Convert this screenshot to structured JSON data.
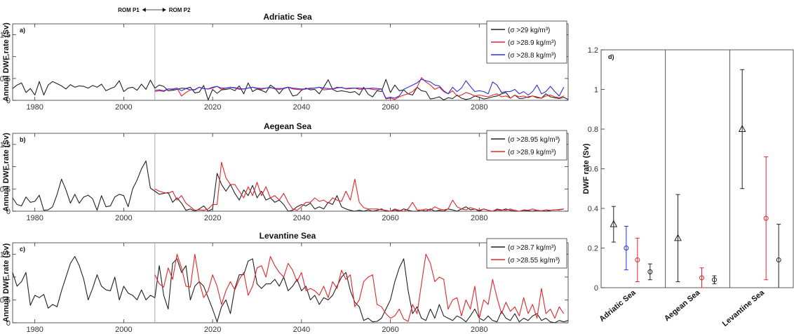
{
  "rom_labels": {
    "left": "ROM P1",
    "right": "ROM P2"
  },
  "ts_ylabel": "Annual DWF rate (Sv)",
  "ts_xticks": [
    1980,
    2000,
    2020,
    2040,
    2060,
    2080
  ],
  "ts_yticks": [
    "0",
    "0.5",
    "1",
    "1.5"
  ],
  "d_panel": {
    "letter": "d)",
    "ylabel": "DWF rate (Sv)",
    "yticks": [
      "0",
      "0.2",
      "0.4",
      "0.6",
      "0.8",
      "1",
      "1.2"
    ],
    "groups": [
      "Adriatic Sea",
      "Aegean Sea",
      "Levantine Sea"
    ]
  },
  "colors": {
    "black": "#222222",
    "red": "#e8252a",
    "blue": "#2e2ee6"
  },
  "chart_data": [
    {
      "type": "line",
      "letter": "a)",
      "title": "Adriatic Sea",
      "xlim": [
        1975,
        2100
      ],
      "ylim": [
        0,
        1.75
      ],
      "switch_year": 2007,
      "legend": [
        "(σ >29 kg/m³)",
        "(σ >28.9 kg/m³)",
        "(σ >28.8 kg/m³)"
      ],
      "series": [
        {
          "color": "black",
          "x0": 1975,
          "values": [
            0.27,
            0.35,
            0.4,
            0.18,
            0.27,
            0.12,
            0.43,
            0.12,
            0.35,
            0.43,
            0.38,
            0.33,
            0.26,
            0.36,
            0.3,
            0.33,
            0.32,
            0.28,
            0.34,
            0.3,
            0.37,
            0.22,
            0.27,
            0.31,
            0.45,
            0.2,
            0.28,
            0.3,
            0.23,
            0.37,
            0.25,
            0.46,
            0.28,
            0.35,
            0.32,
            0.22,
            0.23,
            0.25,
            0.28,
            0.27,
            0.3,
            0.17,
            0.19,
            0.34,
            0.01,
            0.25,
            0.16,
            0.24,
            0.25,
            0.27,
            0.22,
            0.33,
            0.15,
            0.4,
            0.2,
            0.26,
            0.23,
            0.18,
            0.35,
            0.28,
            0.15,
            0.28,
            0.3,
            0.1,
            0.12,
            0.23,
            0.28,
            0.24,
            0.25,
            0.15,
            0.3,
            0.47,
            0.25,
            0.2,
            0.22,
            0.2,
            0.18,
            0.2,
            0.12,
            0.3,
            0.14,
            0.08,
            0.22,
            0.2,
            0.48,
            0.18,
            0.35,
            0.22,
            0.24,
            0.15,
            0.12,
            0.3,
            0.22,
            0.2,
            0.03,
            0.05,
            0.08,
            0.01,
            0.06,
            0.04,
            0.12,
            0.05,
            0.02,
            0.04,
            0.1,
            0.07,
            0.03,
            0.05,
            0.08,
            0.1,
            0.15,
            0.18,
            0.05,
            0.12,
            0.04,
            0.05,
            0.08,
            0.1,
            0.06,
            0.05,
            0.15,
            0.08,
            0.06,
            0.04,
            0.07,
            0.02
          ]
        },
        {
          "color": "red",
          "x0": 2007,
          "values": [
            0.2,
            0.22,
            0.2,
            0.26,
            0.26,
            0.28,
            0.1,
            0.18,
            0.24,
            0.25,
            0.3,
            0.27,
            0.26,
            0.28,
            0.32,
            0.25,
            0.28,
            0.3,
            0.28,
            0.25,
            0.26,
            0.28,
            0.3,
            0.27,
            0.25,
            0.28,
            0.3,
            0.26,
            0.25,
            0.27,
            0.3,
            0.26,
            0.25,
            0.24,
            0.26,
            0.27,
            0.28,
            0.3,
            0.24,
            0.25,
            0.26,
            0.28,
            0.3,
            0.26,
            0.27,
            0.28,
            0.25,
            0.26,
            0.27,
            0.25,
            0.24,
            0.26,
            0.03,
            0.05,
            0.02,
            0.08,
            0.12,
            0.15,
            0.2,
            0.3,
            0.52,
            0.42,
            0.35,
            0.25,
            0.3,
            0.2,
            0.15,
            0.22,
            0.1,
            0.12,
            0.18,
            0.15,
            0.1,
            0.12,
            0.1,
            0.08,
            0.12,
            0.15,
            0.08,
            0.1,
            0.05,
            0.12,
            0.08,
            0.1,
            0.06,
            0.1,
            0.08,
            0.05,
            0.1,
            0.12,
            0.08,
            0.06,
            0.1
          ]
        },
        {
          "color": "blue",
          "x0": 2007,
          "values": [
            0.23,
            0.24,
            0.22,
            0.26,
            0.25,
            0.28,
            0.22,
            0.27,
            0.24,
            0.24,
            0.3,
            0.27,
            0.26,
            0.3,
            0.32,
            0.28,
            0.28,
            0.3,
            0.29,
            0.27,
            0.26,
            0.28,
            0.3,
            0.28,
            0.27,
            0.28,
            0.29,
            0.27,
            0.27,
            0.27,
            0.3,
            0.28,
            0.27,
            0.26,
            0.26,
            0.28,
            0.28,
            0.3,
            0.28,
            0.27,
            0.26,
            0.3,
            0.29,
            0.27,
            0.28,
            0.28,
            0.28,
            0.27,
            0.27,
            0.28,
            0.27,
            0.26,
            0.05,
            0.07,
            0.05,
            0.1,
            0.25,
            0.3,
            0.35,
            0.4,
            0.48,
            0.45,
            0.42,
            0.35,
            0.33,
            0.22,
            0.15,
            0.3,
            0.2,
            0.28,
            0.45,
            0.32,
            0.2,
            0.22,
            0.2,
            0.15,
            0.42,
            0.35,
            0.18,
            0.2,
            0.2,
            0.25,
            0.15,
            0.2,
            0.12,
            0.2,
            0.35,
            0.15,
            0.2,
            0.32,
            0.2,
            0.1,
            0.3
          ]
        }
      ]
    },
    {
      "type": "line",
      "letter": "b)",
      "title": "Aegean Sea",
      "xlim": [
        1975,
        2100
      ],
      "ylim": [
        0,
        1.75
      ],
      "switch_year": 2007,
      "legend": [
        "(σ >28.95 kg/m³)",
        "(σ >28.9 kg/m³)"
      ],
      "series": [
        {
          "color": "black",
          "x0": 1975,
          "values": [
            0.3,
            0.15,
            0.12,
            0.32,
            0.2,
            0.22,
            0.36,
            0.02,
            0.03,
            0.1,
            0.38,
            0.72,
            0.48,
            0.18,
            0.38,
            0.18,
            0.32,
            0.36,
            0.28,
            0.02,
            0.35,
            0.1,
            0.12,
            0.32,
            0.38,
            0.35,
            0.1,
            0.5,
            0.7,
            0.95,
            1.13,
            0.52,
            0.45,
            0.38,
            0.4,
            0.42,
            0.2,
            0.3,
            0.18,
            0.02,
            0.05,
            0.0,
            0.05,
            0.12,
            0.0,
            0.05,
            0.85,
            0.6,
            0.45,
            0.6,
            0.4,
            0.25,
            0.48,
            0.35,
            0.58,
            0.3,
            0.45,
            0.25,
            0.3,
            0.2,
            0.25,
            0.15,
            0.0,
            0.02,
            0.1,
            0.15,
            0.12,
            0.18,
            0.05,
            0.1,
            0.05,
            0.2,
            0.15,
            0.35,
            0.1,
            0.05,
            0.02,
            0.0,
            0.02,
            0.0,
            0.03,
            0.0,
            0.02,
            0.05,
            0.0,
            0.0,
            0.03,
            0.0,
            0.05,
            0.02,
            0.0,
            0.0,
            0.03,
            0.0,
            0.05,
            0.0,
            0.02,
            0.0,
            0.05,
            0.03,
            0.0,
            0.05,
            0.1,
            0.03,
            0.05,
            0.0,
            0.05,
            0.02,
            0.0,
            0.03,
            0.02,
            0.05,
            0.02,
            0.0,
            0.0,
            0.02,
            0.01,
            0.0,
            0.02,
            0.01,
            0.0,
            0.02,
            0.03,
            0.03,
            0.05
          ]
        },
        {
          "color": "red",
          "x0": 2007,
          "values": [
            0.5,
            0.45,
            0.42,
            0.4,
            0.45,
            0.25,
            0.35,
            0.18,
            0.1,
            0.02,
            0.03,
            0.02,
            0.05,
            0.15,
            0.15,
            1.1,
            0.75,
            0.6,
            0.6,
            0.45,
            0.3,
            0.55,
            0.35,
            0.65,
            0.35,
            0.55,
            0.3,
            0.35,
            0.25,
            0.4,
            0.2,
            0.05,
            0.02,
            0.1,
            0.2,
            0.2,
            0.3,
            0.22,
            0.25,
            0.18,
            0.3,
            0.25,
            0.22,
            0.45,
            0.25,
            0.72,
            0.2,
            0.08,
            0.05,
            0.05,
            0.05,
            0.03,
            0.02,
            0.0,
            0.05,
            0.02,
            0.0,
            0.05,
            0.2,
            0.03,
            0.02,
            0.05,
            0.02,
            0.1,
            0.05,
            0.03,
            0.05,
            0.25,
            0.1,
            0.05,
            0.03,
            0.08,
            0.05,
            0.02,
            0.05,
            0.02,
            0.0,
            0.05,
            0.03,
            0.02,
            0.05,
            0.02,
            0.0,
            0.03,
            0.02,
            0.05,
            0.02,
            0.01,
            0.03,
            0.02,
            0.03,
            0.04,
            0.05
          ]
        }
      ]
    },
    {
      "type": "line",
      "letter": "c)",
      "title": "Levantine Sea",
      "xlim": [
        1975,
        2100
      ],
      "ylim": [
        0,
        1.75
      ],
      "switch_year": 2007,
      "legend": [
        "(σ >28.7 kg/m³)",
        "(σ >28.55 kg/m³)"
      ],
      "series": [
        {
          "color": "black",
          "x0": 1975,
          "values": [
            1.1,
            0.8,
            0.9,
            1.1,
            0.38,
            0.6,
            0.55,
            0.62,
            0.32,
            0.4,
            0.35,
            0.7,
            1.0,
            1.3,
            1.45,
            1.25,
            0.95,
            0.5,
            0.75,
            1.05,
            0.8,
            0.72,
            0.7,
            1.0,
            0.5,
            0.8,
            0.65,
            0.6,
            0.5,
            0.72,
            0.5,
            0.6,
            0.55,
            1.25,
            0.6,
            0.3,
            1.3,
            1.4,
            1.1,
            1.25,
            0.5,
            0.8,
            0.9,
            0.8,
            0.55,
            0.3,
            0.02,
            0.35,
            0.5,
            0.2,
            0.75,
            1.05,
            1.05,
            1.35,
            1.4,
            0.85,
            0.75,
            0.85,
            0.85,
            0.95,
            0.8,
            1.0,
            0.7,
            0.8,
            0.95,
            0.7,
            0.8,
            0.5,
            0.6,
            0.4,
            0.55,
            0.5,
            0.6,
            0.8,
            1.0,
            1.1,
            0.7,
            0.45,
            0.35,
            0.05,
            0.1,
            0.02,
            0.03,
            0.1,
            0.3,
            0.5,
            0.9,
            1.2,
            1.4,
            0.7,
            0.2,
            0.35,
            0.1,
            0.05,
            0.3,
            0.1,
            0.4,
            0.15,
            0.1,
            0.05,
            0.15,
            0.1,
            0.02,
            0.15,
            0.3,
            0.1,
            0.05,
            0.15,
            0.05,
            0.02,
            0.25,
            0.1,
            0.05,
            0.2,
            0.02,
            0.1,
            0.05,
            0.15,
            0.2,
            0.05,
            0.1,
            0.02,
            0.0,
            0.05,
            0.02,
            0.05
          ]
        },
        {
          "color": "red",
          "x0": 2007,
          "values": [
            1.05,
            0.85,
            0.78,
            1.2,
            0.95,
            1.5,
            1.2,
            0.8,
            0.78,
            1.5,
            0.9,
            0.55,
            0.7,
            1.05,
            0.8,
            0.4,
            0.7,
            0.9,
            0.72,
            0.95,
            1.1,
            0.6,
            0.8,
            1.2,
            1.25,
            1.0,
            1.45,
            1.25,
            1.1,
            1.0,
            1.3,
            1.15,
            0.9,
            1.1,
            0.7,
            0.75,
            0.7,
            0.6,
            0.8,
            0.55,
            0.9,
            0.75,
            1.15,
            0.95,
            1.05,
            0.35,
            0.5,
            0.9,
            1.0,
            1.05,
            0.4,
            0.35,
            0.2,
            0.1,
            0.15,
            0.3,
            0.08,
            0.03,
            0.4,
            0.2,
            0.85,
            1.5,
            1.3,
            0.9,
            1.0,
            0.95,
            0.3,
            0.5,
            0.55,
            0.15,
            0.5,
            0.3,
            0.8,
            0.1,
            0.5,
            0.4,
            0.95,
            0.55,
            0.2,
            0.45,
            0.25,
            0.35,
            0.15,
            0.55,
            0.2,
            0.4,
            0.1,
            0.75,
            0.2,
            0.3,
            0.1,
            0.35,
            0.2
          ]
        }
      ]
    },
    {
      "type": "scatter",
      "letter": "d)",
      "ylabel": "DWF rate (Sv)",
      "ylim": [
        0,
        1.2
      ],
      "categories": [
        "Adriatic Sea",
        "Aegean Sea",
        "Levantine Sea"
      ],
      "points": [
        {
          "category": "Adriatic Sea",
          "color": "black",
          "marker": "triangle",
          "value": 0.32,
          "low": 0.23,
          "high": 0.41
        },
        {
          "category": "Adriatic Sea",
          "color": "blue",
          "marker": "circle",
          "value": 0.2,
          "low": 0.09,
          "high": 0.31
        },
        {
          "category": "Adriatic Sea",
          "color": "red",
          "marker": "circle",
          "value": 0.14,
          "low": 0.03,
          "high": 0.25
        },
        {
          "category": "Adriatic Sea",
          "color": "black",
          "marker": "circle",
          "value": 0.08,
          "low": 0.04,
          "high": 0.12
        },
        {
          "category": "Aegean Sea",
          "color": "black",
          "marker": "triangle",
          "value": 0.25,
          "low": 0.03,
          "high": 0.47
        },
        {
          "category": "Aegean Sea",
          "color": "red",
          "marker": "circle",
          "value": 0.05,
          "low": 0.0,
          "high": 0.1
        },
        {
          "category": "Aegean Sea",
          "color": "black",
          "marker": "circle",
          "value": 0.04,
          "low": 0.02,
          "high": 0.06
        },
        {
          "category": "Levantine Sea",
          "color": "black",
          "marker": "triangle",
          "value": 0.8,
          "low": 0.5,
          "high": 1.1
        },
        {
          "category": "Levantine Sea",
          "color": "red",
          "marker": "circle",
          "value": 0.35,
          "low": 0.04,
          "high": 0.66
        },
        {
          "category": "Levantine Sea",
          "color": "black",
          "marker": "circle",
          "value": 0.14,
          "low": -0.04,
          "high": 0.32
        }
      ]
    }
  ]
}
